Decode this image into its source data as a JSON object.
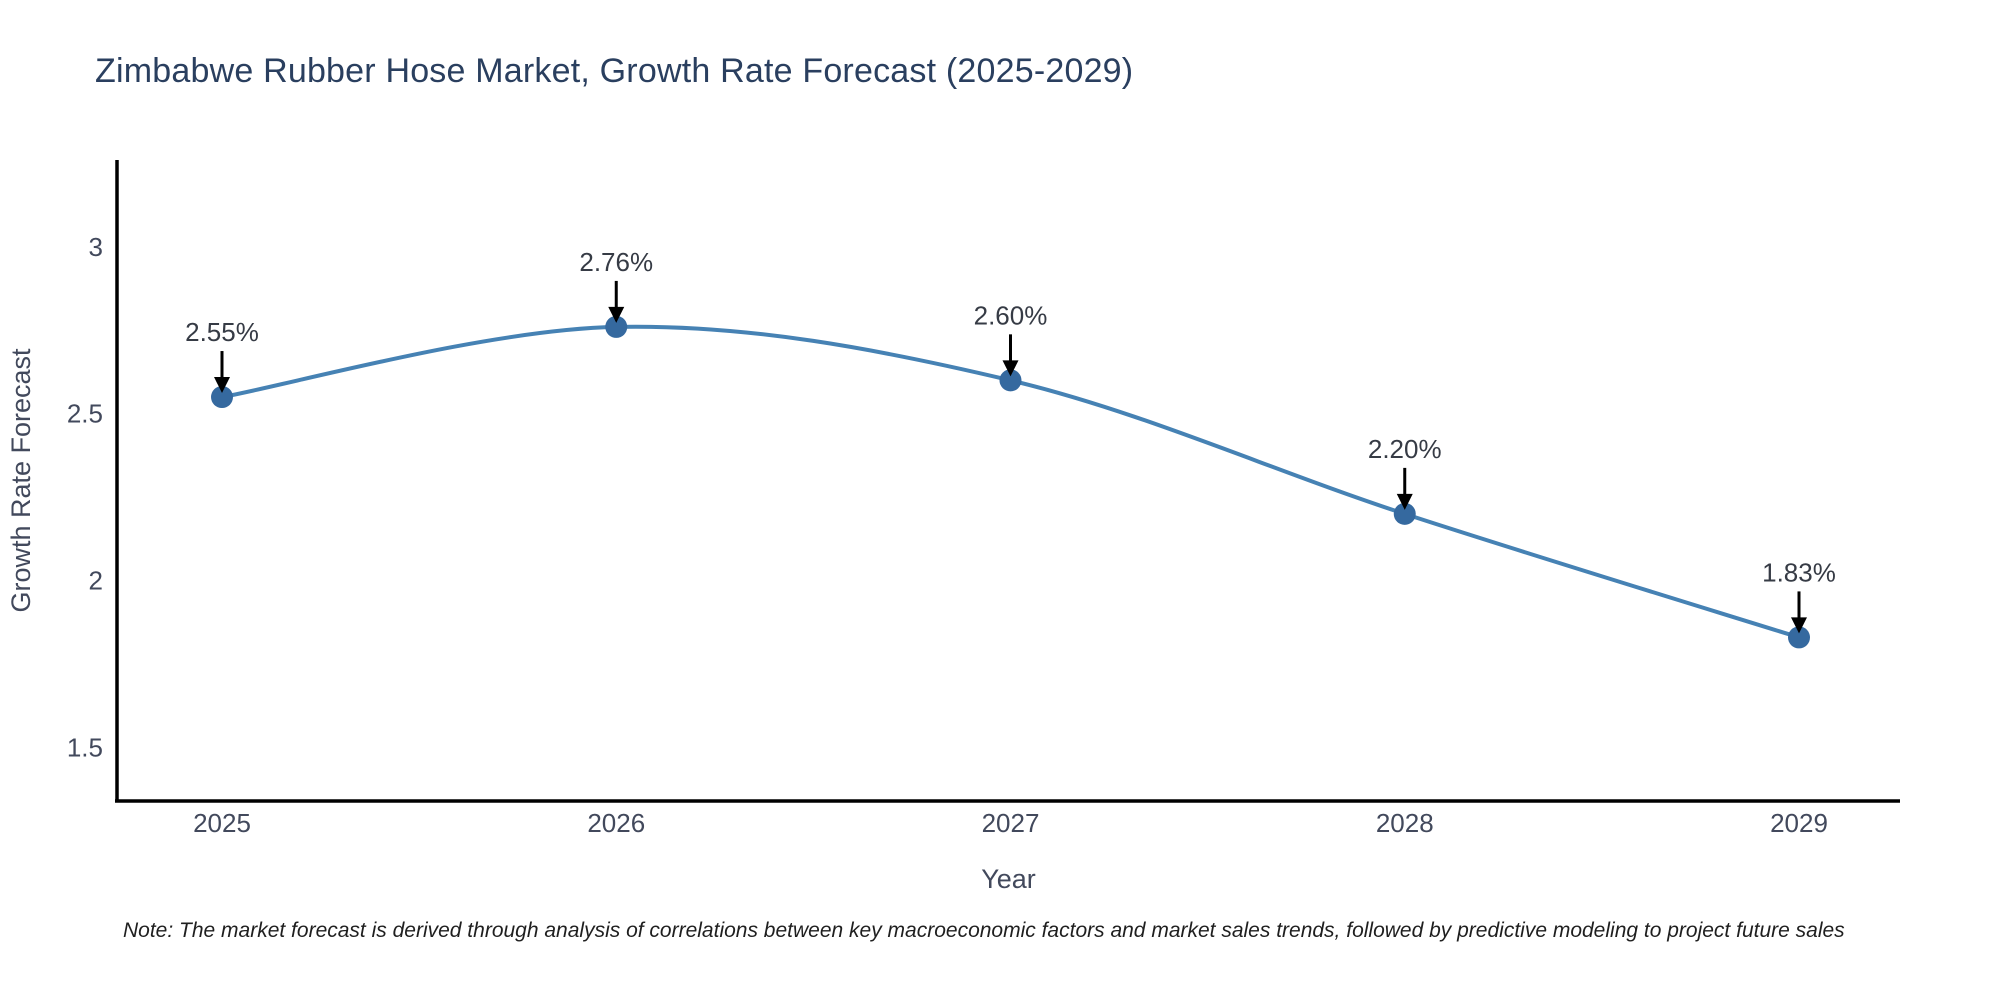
{
  "title": "Zimbabwe Rubber Hose Market, Growth Rate Forecast (2025-2029)",
  "note": "Note: The market forecast is derived through analysis of correlations between key macroeconomic factors and market sales trends, followed by predictive modeling to project future sales",
  "colors": {
    "line": "#4682b4",
    "marker": "#35699f",
    "arrow": "#000000",
    "axis_line": "#000000",
    "title_text": "#2a3f5f",
    "axis_text": "#42495c",
    "annotation_text": "#363b45",
    "note_text": "#1f1f1f",
    "background": "#ffffff"
  },
  "chart_data": {
    "type": "line",
    "title": "Zimbabwe Rubber Hose Market, Growth Rate Forecast (2025-2029)",
    "x": [
      "2025",
      "2026",
      "2027",
      "2028",
      "2029"
    ],
    "values": [
      2.55,
      2.76,
      2.6,
      2.2,
      1.83
    ],
    "point_labels": [
      "2.55%",
      "2.76%",
      "2.60%",
      "2.20%",
      "1.83%"
    ],
    "xlabel": "Year",
    "ylabel": "Growth Rate Forecast",
    "yticks": [
      1.5,
      2,
      2.5,
      3
    ],
    "ytick_labels": [
      "1.5",
      "2",
      "2.5",
      "3"
    ],
    "ylim": [
      1.34,
      3.26
    ],
    "grid": false,
    "legend": "none",
    "line_shape": "spline",
    "marker": "circle",
    "annotation_style": "value-label-with-down-arrow"
  }
}
